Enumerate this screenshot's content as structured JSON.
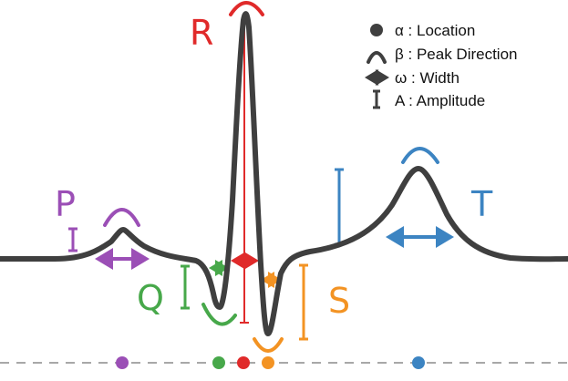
{
  "colors": {
    "curve": "#3f3f3f",
    "axis": "#a8a8a8",
    "legend_icon": "#3f3f3f",
    "P": "#9b4fb6",
    "Q": "#47a84a",
    "R": "#e02a2a",
    "S": "#f39323",
    "T": "#3c84c2"
  },
  "labels": {
    "P": "P",
    "Q": "Q",
    "R": "R",
    "S": "S",
    "T": "T"
  },
  "legend": {
    "location": "α : Location",
    "peak_direction": "β : Peak Direction",
    "width": "ω : Width",
    "amplitude": "A : Amplitude"
  },
  "icons": {
    "location": "filled-circle-icon",
    "peak_direction": "arc-icon",
    "width": "double-arrow-icon",
    "amplitude": "i-beam-icon"
  }
}
